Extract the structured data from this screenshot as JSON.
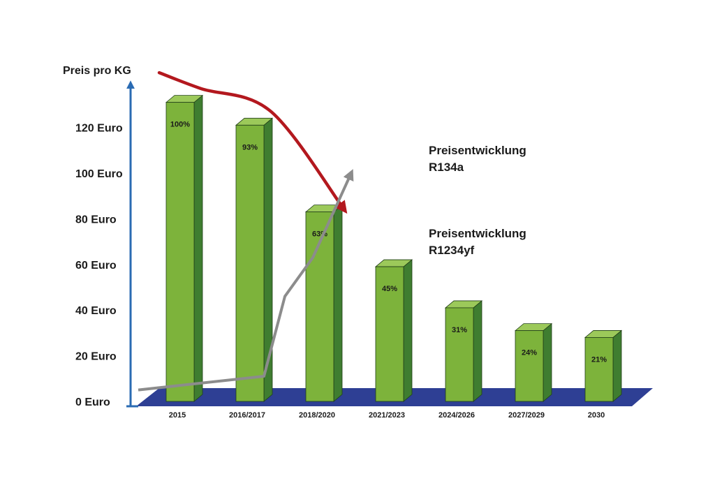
{
  "chart_data": {
    "type": "bar",
    "ylabel": "Preis pro KG",
    "categories": [
      "2015",
      "2016/2017",
      "2018/2020",
      "2021/2023",
      "2024/2026",
      "2027/2029",
      "2030"
    ],
    "values": [
      131,
      121,
      83,
      59,
      41,
      31,
      28
    ],
    "data_labels": [
      "100%",
      "93%",
      "63%",
      "45%",
      "31%",
      "24%",
      "21%"
    ],
    "y_ticks": [
      "0 Euro",
      "20 Euro",
      "40 Euro",
      "60 Euro",
      "80 Euro",
      "100 Euro",
      "120 Euro"
    ],
    "ylim": [
      0,
      140
    ],
    "grid": false,
    "colors": {
      "bar_front": "#7db33b",
      "bar_side": "#3f7d30",
      "bar_top": "#9cc95a",
      "floor": "#2e3f94",
      "axis": "#2a6bb3",
      "r1234yf_line": "#b3181e",
      "r134a_line": "#8c8c8c"
    },
    "lines": [
      {
        "name": "R1234yf",
        "label_lines": [
          "Preisentwicklung",
          "R1234yf"
        ],
        "x": [
          -0.3,
          0.3,
          1.3,
          2.35
        ],
        "y": [
          144,
          137,
          127,
          84
        ]
      },
      {
        "name": "R134a",
        "label_lines": [
          "Preisentwicklung",
          "R134a"
        ],
        "x": [
          -0.6,
          1.2,
          1.5,
          1.9,
          2.45
        ],
        "y": [
          5,
          11,
          46,
          63,
          100
        ]
      }
    ]
  }
}
